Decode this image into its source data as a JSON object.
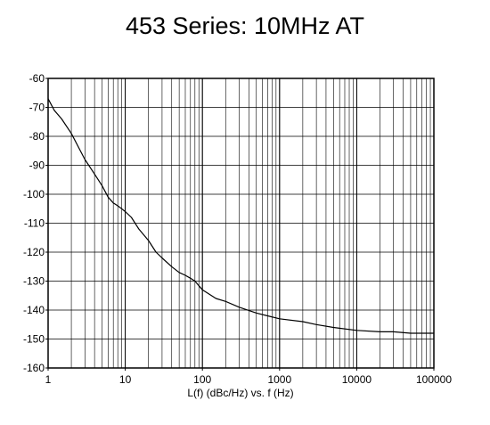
{
  "chart_data": {
    "type": "line",
    "title": "453 Series:  10MHz AT",
    "xlabel": "L(f) (dBc/Hz) vs. f (Hz)",
    "ylabel": "",
    "x_scale": "log",
    "xlim": [
      1,
      100000
    ],
    "ylim": [
      -160,
      -60
    ],
    "grid": true,
    "x_tick_labels": [
      "1",
      "10",
      "100",
      "1000",
      "10000",
      "100000"
    ],
    "y_tick_labels": [
      "-60",
      "-70",
      "-80",
      "-90",
      "-100",
      "-110",
      "-120",
      "-130",
      "-140",
      "-150",
      "-160"
    ],
    "series": [
      {
        "name": "",
        "x": [
          1,
          1.2,
          1.5,
          2,
          2.5,
          3,
          4,
          5,
          6,
          7,
          8,
          9,
          10,
          12,
          15,
          20,
          25,
          30,
          40,
          50,
          60,
          70,
          80,
          100,
          150,
          200,
          300,
          500,
          700,
          1000,
          2000,
          3000,
          5000,
          10000,
          20000,
          30000,
          50000,
          100000
        ],
        "y": [
          -67,
          -71,
          -74,
          -79,
          -84,
          -88,
          -93,
          -97,
          -101,
          -103,
          -104,
          -105,
          -106,
          -108,
          -112,
          -116,
          -120,
          -122,
          -125,
          -127,
          -128,
          -129,
          -130,
          -133,
          -136,
          -137,
          -139,
          -141,
          -142,
          -143,
          -144,
          -145,
          -146,
          -147,
          -147.5,
          -147.5,
          -148,
          -148
        ]
      }
    ]
  }
}
